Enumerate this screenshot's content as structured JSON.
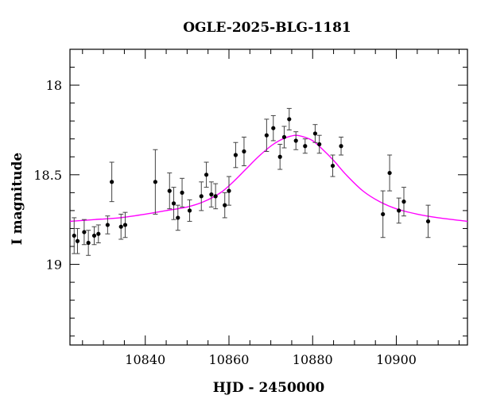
{
  "chart_data": {
    "type": "scatter",
    "title": "OGLE-2025-BLG-1181",
    "xlabel": "HJD - 2450000",
    "ylabel": "I magnitude",
    "xlim": [
      10822,
      10917
    ],
    "ylim": [
      19.45,
      17.8
    ],
    "y_inverted": true,
    "x_ticks": [
      10840,
      10860,
      10880,
      10900
    ],
    "y_ticks": [
      18,
      18.5,
      19
    ],
    "y_tick_labels": [
      "18",
      "18.5",
      "19"
    ],
    "x_minor_step": 5,
    "y_minor_step": 0.1,
    "grid": false,
    "marker_color": "#000000",
    "model_color": "#ff00ff",
    "series": [
      {
        "points": [
          {
            "x": 10823.0,
            "y": 18.84,
            "err": 0.1
          },
          {
            "x": 10823.8,
            "y": 18.87,
            "err": 0.07
          },
          {
            "x": 10825.4,
            "y": 18.82,
            "err": 0.07
          },
          {
            "x": 10826.4,
            "y": 18.88,
            "err": 0.07
          },
          {
            "x": 10827.8,
            "y": 18.84,
            "err": 0.05
          },
          {
            "x": 10828.8,
            "y": 18.83,
            "err": 0.05
          },
          {
            "x": 10831.0,
            "y": 18.78,
            "err": 0.05
          },
          {
            "x": 10832.0,
            "y": 18.54,
            "err": 0.11
          },
          {
            "x": 10834.2,
            "y": 18.79,
            "err": 0.07
          },
          {
            "x": 10835.2,
            "y": 18.78,
            "err": 0.07
          },
          {
            "x": 10842.4,
            "y": 18.54,
            "err": 0.18
          },
          {
            "x": 10845.8,
            "y": 18.59,
            "err": 0.1
          },
          {
            "x": 10846.8,
            "y": 18.66,
            "err": 0.09
          },
          {
            "x": 10847.8,
            "y": 18.74,
            "err": 0.07
          },
          {
            "x": 10848.8,
            "y": 18.6,
            "err": 0.08
          },
          {
            "x": 10850.6,
            "y": 18.7,
            "err": 0.06
          },
          {
            "x": 10853.4,
            "y": 18.62,
            "err": 0.08
          },
          {
            "x": 10854.6,
            "y": 18.5,
            "err": 0.07
          },
          {
            "x": 10855.8,
            "y": 18.61,
            "err": 0.07
          },
          {
            "x": 10856.8,
            "y": 18.62,
            "err": 0.07
          },
          {
            "x": 10859.0,
            "y": 18.67,
            "err": 0.07
          },
          {
            "x": 10860.0,
            "y": 18.59,
            "err": 0.08
          },
          {
            "x": 10861.6,
            "y": 18.39,
            "err": 0.07
          },
          {
            "x": 10863.6,
            "y": 18.37,
            "err": 0.08
          },
          {
            "x": 10869.0,
            "y": 18.28,
            "err": 0.09
          },
          {
            "x": 10870.6,
            "y": 18.24,
            "err": 0.07
          },
          {
            "x": 10872.2,
            "y": 18.4,
            "err": 0.07
          },
          {
            "x": 10873.2,
            "y": 18.29,
            "err": 0.06
          },
          {
            "x": 10874.4,
            "y": 18.19,
            "err": 0.06
          },
          {
            "x": 10876.0,
            "y": 18.31,
            "err": 0.05
          },
          {
            "x": 10878.2,
            "y": 18.34,
            "err": 0.04
          },
          {
            "x": 10880.6,
            "y": 18.27,
            "err": 0.05
          },
          {
            "x": 10881.6,
            "y": 18.33,
            "err": 0.05
          },
          {
            "x": 10884.8,
            "y": 18.45,
            "err": 0.06
          },
          {
            "x": 10886.8,
            "y": 18.34,
            "err": 0.05
          },
          {
            "x": 10896.8,
            "y": 18.72,
            "err": 0.13
          },
          {
            "x": 10898.4,
            "y": 18.49,
            "err": 0.1
          },
          {
            "x": 10900.6,
            "y": 18.7,
            "err": 0.07
          },
          {
            "x": 10901.8,
            "y": 18.65,
            "err": 0.08
          },
          {
            "x": 10907.6,
            "y": 18.76,
            "err": 0.09
          }
        ]
      }
    ],
    "model": {
      "type": "line",
      "x": [
        10822,
        10828,
        10834,
        10840,
        10845,
        10850,
        10854,
        10858,
        10861,
        10864,
        10867,
        10870,
        10872,
        10874,
        10876,
        10878,
        10880,
        10882,
        10885,
        10888,
        10892,
        10896,
        10900,
        10905,
        10910,
        10917
      ],
      "y": [
        18.76,
        18.75,
        18.74,
        18.72,
        18.7,
        18.68,
        18.65,
        18.6,
        18.54,
        18.47,
        18.4,
        18.34,
        18.31,
        18.29,
        18.28,
        18.29,
        18.31,
        18.35,
        18.42,
        18.5,
        18.59,
        18.65,
        18.69,
        18.72,
        18.74,
        18.76
      ]
    }
  }
}
